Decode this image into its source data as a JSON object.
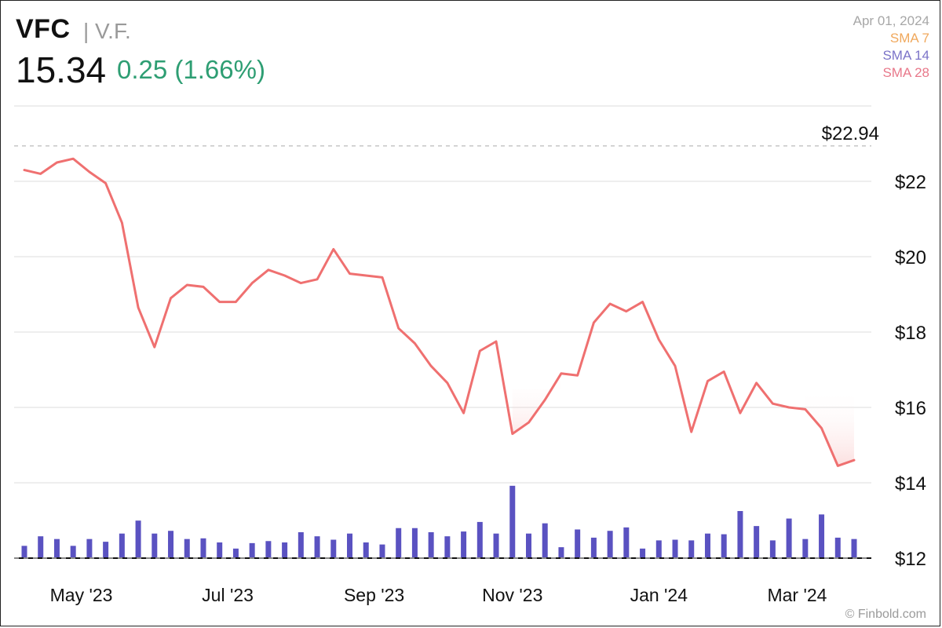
{
  "header": {
    "ticker": "VFC",
    "company": "| V.F.",
    "price": "15.34",
    "change": "0.25 (1.66%)"
  },
  "legend": {
    "date": "Apr 01, 2024",
    "items": [
      {
        "label": "SMA 7",
        "color": "#f0a85c"
      },
      {
        "label": "SMA 14",
        "color": "#7b73c8"
      },
      {
        "label": "SMA 28",
        "color": "#e8788a"
      }
    ]
  },
  "watermark": "© Finbold.com",
  "colors": {
    "price_line": "#ef7070",
    "volume": "#5a52c1",
    "grid": "#dddddd",
    "positive": "#2e9e73"
  },
  "chart_data": {
    "type": "line",
    "ylim": [
      12,
      24
    ],
    "y_ticks": [
      {
        "value": 12,
        "label": "$12"
      },
      {
        "value": 14,
        "label": "$14"
      },
      {
        "value": 16,
        "label": "$16"
      },
      {
        "value": 18,
        "label": "$18"
      },
      {
        "value": 20,
        "label": "$20"
      },
      {
        "value": 22,
        "label": "$22"
      }
    ],
    "x_ticks": [
      {
        "index": 3.5,
        "label": "May '23"
      },
      {
        "index": 12.5,
        "label": "Jul '23"
      },
      {
        "index": 21.5,
        "label": "Sep '23"
      },
      {
        "index": 30,
        "label": "Nov '23"
      },
      {
        "index": 39,
        "label": "Jan '24"
      },
      {
        "index": 47.5,
        "label": "Mar '24"
      }
    ],
    "high_marker": {
      "value": 22.94,
      "label": "$22.94"
    },
    "series": [
      {
        "values": [
          22.3,
          22.2,
          22.5,
          22.6,
          22.25,
          21.95,
          20.9,
          18.65,
          17.6,
          18.9,
          19.25,
          19.2,
          18.8,
          18.8,
          19.3,
          19.65,
          19.5,
          19.3,
          19.4,
          20.2,
          19.55,
          19.5,
          19.45,
          18.1,
          17.7,
          17.1,
          16.65,
          15.85,
          17.5,
          17.75,
          15.3,
          15.6,
          16.2,
          16.9,
          16.85,
          18.25,
          18.75,
          18.55,
          18.8,
          17.8,
          17.1,
          15.35,
          16.7,
          16.95,
          15.85,
          16.65,
          16.1,
          16.0,
          15.95,
          15.45,
          14.45,
          14.6
        ]
      }
    ],
    "volume": [
      1.8,
      3.2,
      2.8,
      1.8,
      2.8,
      2.4,
      3.6,
      5.5,
      3.6,
      4.0,
      2.8,
      2.9,
      2.3,
      1.4,
      2.2,
      2.5,
      2.3,
      3.8,
      3.2,
      2.7,
      3.6,
      2.3,
      2.0,
      4.4,
      4.4,
      3.8,
      3.2,
      3.9,
      5.3,
      3.6,
      10.6,
      3.6,
      5.1,
      1.6,
      4.2,
      3.0,
      4.0,
      4.5,
      1.4,
      2.6,
      2.7,
      2.6,
      3.6,
      3.5,
      6.9,
      4.7,
      2.6,
      5.8,
      2.8,
      6.4,
      3.0,
      2.8
    ]
  }
}
